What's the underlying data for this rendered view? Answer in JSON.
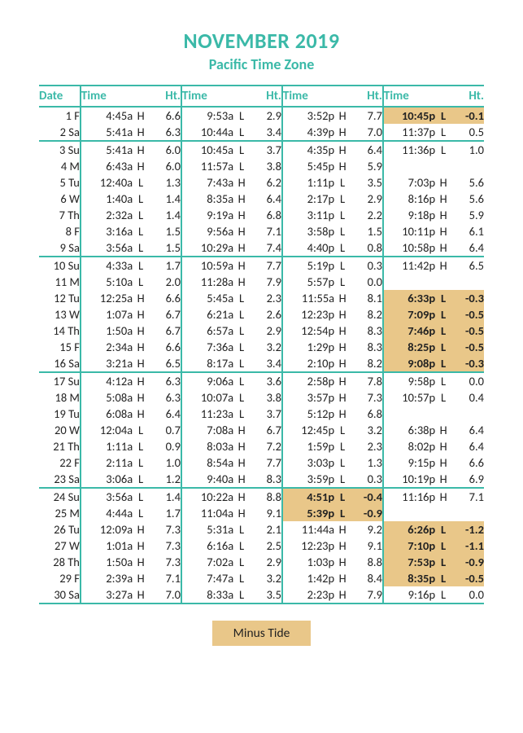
{
  "title": "NOVEMBER 2019",
  "subtitle": "Pacific Time Zone",
  "legend_label": "Minus Tide",
  "colors": {
    "accent": "#3bb9a8",
    "minus_bg": "#e9c789",
    "text": "#222222",
    "background": "#ffffff"
  },
  "headers": {
    "date": "Date",
    "time": "Time",
    "ht": "Ht."
  },
  "week_breaks_after": [
    "2 Sa",
    "9 Sa",
    "16 Sa",
    "23 Sa"
  ],
  "rows": [
    {
      "date": "1 F",
      "tides": [
        {
          "time": "4:45a",
          "hl": "H",
          "ht": "6.6"
        },
        {
          "time": "9:53a",
          "hl": "L",
          "ht": "2.9"
        },
        {
          "time": "3:52p",
          "hl": "H",
          "ht": "7.7"
        },
        {
          "time": "10:45p",
          "hl": "L",
          "ht": "-0.1",
          "minus": true
        }
      ]
    },
    {
      "date": "2 Sa",
      "tides": [
        {
          "time": "5:41a",
          "hl": "H",
          "ht": "6.3"
        },
        {
          "time": "10:44a",
          "hl": "L",
          "ht": "3.4"
        },
        {
          "time": "4:39p",
          "hl": "H",
          "ht": "7.0"
        },
        {
          "time": "11:37p",
          "hl": "L",
          "ht": "0.5"
        }
      ]
    },
    {
      "date": "3 Su",
      "tides": [
        {
          "time": "5:41a",
          "hl": "H",
          "ht": "6.0"
        },
        {
          "time": "10:45a",
          "hl": "L",
          "ht": "3.7"
        },
        {
          "time": "4:35p",
          "hl": "H",
          "ht": "6.4"
        },
        {
          "time": "11:36p",
          "hl": "L",
          "ht": "1.0"
        }
      ]
    },
    {
      "date": "4 M",
      "tides": [
        {
          "time": "6:43a",
          "hl": "H",
          "ht": "6.0"
        },
        {
          "time": "11:57a",
          "hl": "L",
          "ht": "3.8"
        },
        {
          "time": "5:45p",
          "hl": "H",
          "ht": "5.9"
        },
        null
      ]
    },
    {
      "date": "5 Tu",
      "tides": [
        {
          "time": "12:40a",
          "hl": "L",
          "ht": "1.3"
        },
        {
          "time": "7:43a",
          "hl": "H",
          "ht": "6.2"
        },
        {
          "time": "1:11p",
          "hl": "L",
          "ht": "3.5"
        },
        {
          "time": "7:03p",
          "hl": "H",
          "ht": "5.6"
        }
      ]
    },
    {
      "date": "6 W",
      "tides": [
        {
          "time": "1:40a",
          "hl": "L",
          "ht": "1.4"
        },
        {
          "time": "8:35a",
          "hl": "H",
          "ht": "6.4"
        },
        {
          "time": "2:17p",
          "hl": "L",
          "ht": "2.9"
        },
        {
          "time": "8:16p",
          "hl": "H",
          "ht": "5.6"
        }
      ]
    },
    {
      "date": "7 Th",
      "tides": [
        {
          "time": "2:32a",
          "hl": "L",
          "ht": "1.4"
        },
        {
          "time": "9:19a",
          "hl": "H",
          "ht": "6.8"
        },
        {
          "time": "3:11p",
          "hl": "L",
          "ht": "2.2"
        },
        {
          "time": "9:18p",
          "hl": "H",
          "ht": "5.9"
        }
      ]
    },
    {
      "date": "8 F",
      "tides": [
        {
          "time": "3:16a",
          "hl": "L",
          "ht": "1.5"
        },
        {
          "time": "9:56a",
          "hl": "H",
          "ht": "7.1"
        },
        {
          "time": "3:58p",
          "hl": "L",
          "ht": "1.5"
        },
        {
          "time": "10:11p",
          "hl": "H",
          "ht": "6.1"
        }
      ]
    },
    {
      "date": "9 Sa",
      "tides": [
        {
          "time": "3:56a",
          "hl": "L",
          "ht": "1.5"
        },
        {
          "time": "10:29a",
          "hl": "H",
          "ht": "7.4"
        },
        {
          "time": "4:40p",
          "hl": "L",
          "ht": "0.8"
        },
        {
          "time": "10:58p",
          "hl": "H",
          "ht": "6.4"
        }
      ]
    },
    {
      "date": "10 Su",
      "tides": [
        {
          "time": "4:33a",
          "hl": "L",
          "ht": "1.7"
        },
        {
          "time": "10:59a",
          "hl": "H",
          "ht": "7.7"
        },
        {
          "time": "5:19p",
          "hl": "L",
          "ht": "0.3"
        },
        {
          "time": "11:42p",
          "hl": "H",
          "ht": "6.5"
        }
      ]
    },
    {
      "date": "11 M",
      "tides": [
        {
          "time": "5:10a",
          "hl": "L",
          "ht": "2.0"
        },
        {
          "time": "11:28a",
          "hl": "H",
          "ht": "7.9"
        },
        {
          "time": "5:57p",
          "hl": "L",
          "ht": "0.0"
        },
        null
      ]
    },
    {
      "date": "12 Tu",
      "tides": [
        {
          "time": "12:25a",
          "hl": "H",
          "ht": "6.6"
        },
        {
          "time": "5:45a",
          "hl": "L",
          "ht": "2.3"
        },
        {
          "time": "11:55a",
          "hl": "H",
          "ht": "8.1"
        },
        {
          "time": "6:33p",
          "hl": "L",
          "ht": "-0.3",
          "minus": true
        }
      ]
    },
    {
      "date": "13 W",
      "tides": [
        {
          "time": "1:07a",
          "hl": "H",
          "ht": "6.7"
        },
        {
          "time": "6:21a",
          "hl": "L",
          "ht": "2.6"
        },
        {
          "time": "12:23p",
          "hl": "H",
          "ht": "8.2"
        },
        {
          "time": "7:09p",
          "hl": "L",
          "ht": "-0.5",
          "minus": true
        }
      ]
    },
    {
      "date": "14 Th",
      "tides": [
        {
          "time": "1:50a",
          "hl": "H",
          "ht": "6.7"
        },
        {
          "time": "6:57a",
          "hl": "L",
          "ht": "2.9"
        },
        {
          "time": "12:54p",
          "hl": "H",
          "ht": "8.3"
        },
        {
          "time": "7:46p",
          "hl": "L",
          "ht": "-0.5",
          "minus": true
        }
      ]
    },
    {
      "date": "15 F",
      "tides": [
        {
          "time": "2:34a",
          "hl": "H",
          "ht": "6.6"
        },
        {
          "time": "7:36a",
          "hl": "L",
          "ht": "3.2"
        },
        {
          "time": "1:29p",
          "hl": "H",
          "ht": "8.3"
        },
        {
          "time": "8:25p",
          "hl": "L",
          "ht": "-0.5",
          "minus": true
        }
      ]
    },
    {
      "date": "16 Sa",
      "tides": [
        {
          "time": "3:21a",
          "hl": "H",
          "ht": "6.5"
        },
        {
          "time": "8:17a",
          "hl": "L",
          "ht": "3.4"
        },
        {
          "time": "2:10p",
          "hl": "H",
          "ht": "8.2"
        },
        {
          "time": "9:08p",
          "hl": "L",
          "ht": "-0.3",
          "minus": true
        }
      ]
    },
    {
      "date": "17 Su",
      "tides": [
        {
          "time": "4:12a",
          "hl": "H",
          "ht": "6.3"
        },
        {
          "time": "9:06a",
          "hl": "L",
          "ht": "3.6"
        },
        {
          "time": "2:58p",
          "hl": "H",
          "ht": "7.8"
        },
        {
          "time": "9:58p",
          "hl": "L",
          "ht": "0.0"
        }
      ]
    },
    {
      "date": "18 M",
      "tides": [
        {
          "time": "5:08a",
          "hl": "H",
          "ht": "6.3"
        },
        {
          "time": "10:07a",
          "hl": "L",
          "ht": "3.8"
        },
        {
          "time": "3:57p",
          "hl": "H",
          "ht": "7.3"
        },
        {
          "time": "10:57p",
          "hl": "L",
          "ht": "0.4"
        }
      ]
    },
    {
      "date": "19 Tu",
      "tides": [
        {
          "time": "6:08a",
          "hl": "H",
          "ht": "6.4"
        },
        {
          "time": "11:23a",
          "hl": "L",
          "ht": "3.7"
        },
        {
          "time": "5:12p",
          "hl": "H",
          "ht": "6.8"
        },
        null
      ]
    },
    {
      "date": "20 W",
      "tides": [
        {
          "time": "12:04a",
          "hl": "L",
          "ht": "0.7"
        },
        {
          "time": "7:08a",
          "hl": "H",
          "ht": "6.7"
        },
        {
          "time": "12:45p",
          "hl": "L",
          "ht": "3.2"
        },
        {
          "time": "6:38p",
          "hl": "H",
          "ht": "6.4"
        }
      ]
    },
    {
      "date": "21 Th",
      "tides": [
        {
          "time": "1:11a",
          "hl": "L",
          "ht": "0.9"
        },
        {
          "time": "8:03a",
          "hl": "H",
          "ht": "7.2"
        },
        {
          "time": "1:59p",
          "hl": "L",
          "ht": "2.3"
        },
        {
          "time": "8:02p",
          "hl": "H",
          "ht": "6.4"
        }
      ]
    },
    {
      "date": "22 F",
      "tides": [
        {
          "time": "2:11a",
          "hl": "L",
          "ht": "1.0"
        },
        {
          "time": "8:54a",
          "hl": "H",
          "ht": "7.7"
        },
        {
          "time": "3:03p",
          "hl": "L",
          "ht": "1.3"
        },
        {
          "time": "9:15p",
          "hl": "H",
          "ht": "6.6"
        }
      ]
    },
    {
      "date": "23 Sa",
      "tides": [
        {
          "time": "3:06a",
          "hl": "L",
          "ht": "1.2"
        },
        {
          "time": "9:40a",
          "hl": "H",
          "ht": "8.3"
        },
        {
          "time": "3:59p",
          "hl": "L",
          "ht": "0.3"
        },
        {
          "time": "10:19p",
          "hl": "H",
          "ht": "6.9"
        }
      ]
    },
    {
      "date": "24 Su",
      "tides": [
        {
          "time": "3:56a",
          "hl": "L",
          "ht": "1.4"
        },
        {
          "time": "10:22a",
          "hl": "H",
          "ht": "8.8"
        },
        {
          "time": "4:51p",
          "hl": "L",
          "ht": "-0.4",
          "minus": true
        },
        {
          "time": "11:16p",
          "hl": "H",
          "ht": "7.1"
        }
      ]
    },
    {
      "date": "25 M",
      "tides": [
        {
          "time": "4:44a",
          "hl": "L",
          "ht": "1.7"
        },
        {
          "time": "11:04a",
          "hl": "H",
          "ht": "9.1"
        },
        {
          "time": "5:39p",
          "hl": "L",
          "ht": "-0.9",
          "minus": true
        },
        null
      ]
    },
    {
      "date": "26 Tu",
      "tides": [
        {
          "time": "12:09a",
          "hl": "H",
          "ht": "7.3"
        },
        {
          "time": "5:31a",
          "hl": "L",
          "ht": "2.1"
        },
        {
          "time": "11:44a",
          "hl": "H",
          "ht": "9.2"
        },
        {
          "time": "6:26p",
          "hl": "L",
          "ht": "-1.2",
          "minus": true
        }
      ]
    },
    {
      "date": "27 W",
      "tides": [
        {
          "time": "1:01a",
          "hl": "H",
          "ht": "7.3"
        },
        {
          "time": "6:16a",
          "hl": "L",
          "ht": "2.5"
        },
        {
          "time": "12:23p",
          "hl": "H",
          "ht": "9.1"
        },
        {
          "time": "7:10p",
          "hl": "L",
          "ht": "-1.1",
          "minus": true
        }
      ]
    },
    {
      "date": "28 Th",
      "tides": [
        {
          "time": "1:50a",
          "hl": "H",
          "ht": "7.3"
        },
        {
          "time": "7:02a",
          "hl": "L",
          "ht": "2.9"
        },
        {
          "time": "1:03p",
          "hl": "H",
          "ht": "8.8"
        },
        {
          "time": "7:53p",
          "hl": "L",
          "ht": "-0.9",
          "minus": true
        }
      ]
    },
    {
      "date": "29 F",
      "tides": [
        {
          "time": "2:39a",
          "hl": "H",
          "ht": "7.1"
        },
        {
          "time": "7:47a",
          "hl": "L",
          "ht": "3.2"
        },
        {
          "time": "1:42p",
          "hl": "H",
          "ht": "8.4"
        },
        {
          "time": "8:35p",
          "hl": "L",
          "ht": "-0.5",
          "minus": true
        }
      ]
    },
    {
      "date": "30 Sa",
      "tides": [
        {
          "time": "3:27a",
          "hl": "H",
          "ht": "7.0"
        },
        {
          "time": "8:33a",
          "hl": "L",
          "ht": "3.5"
        },
        {
          "time": "2:23p",
          "hl": "H",
          "ht": "7.9"
        },
        {
          "time": "9:16p",
          "hl": "L",
          "ht": "0.0"
        }
      ]
    }
  ]
}
